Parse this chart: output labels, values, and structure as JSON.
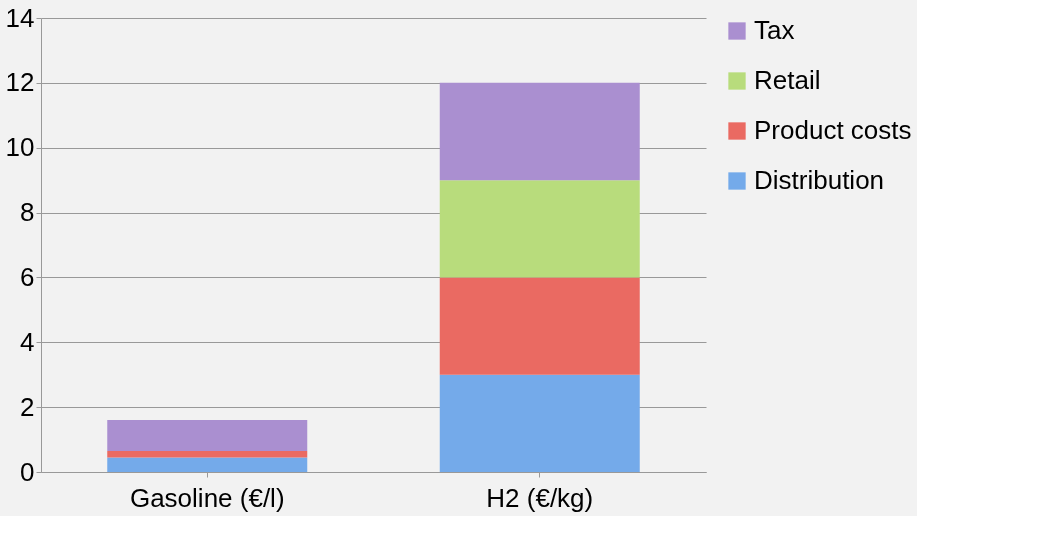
{
  "chart_data": {
    "type": "bar",
    "stacked": true,
    "categories": [
      "Gasoline (€/l)",
      "H2 (€/kg)"
    ],
    "series": [
      {
        "name": "Distribution",
        "color": "#74aaea",
        "values": [
          0.45,
          3
        ]
      },
      {
        "name": "Product costs",
        "color": "#ea6a62",
        "values": [
          0.2,
          3
        ]
      },
      {
        "name": "Retail",
        "color": "#b8dc7c",
        "values": [
          0,
          3
        ]
      },
      {
        "name": "Tax",
        "color": "#aa8fd0",
        "values": [
          0.95,
          3
        ]
      }
    ],
    "ylim": [
      0,
      14
    ],
    "yticks": [
      0,
      2,
      4,
      6,
      8,
      10,
      12,
      14
    ],
    "grid": "y",
    "legend": "right"
  }
}
